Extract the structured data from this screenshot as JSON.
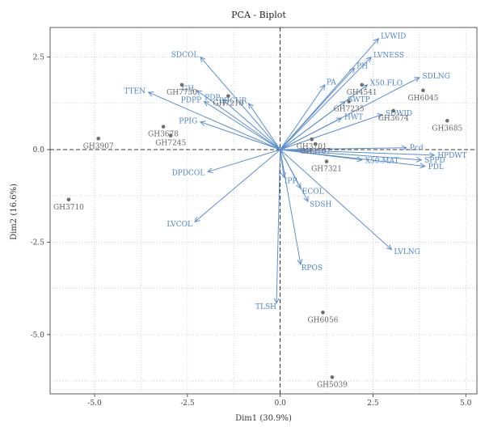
{
  "chart_data": {
    "type": "scatter",
    "title": "PCA - Biplot",
    "xlabel": "Dim1 (30.9%)",
    "ylabel": "Dim2 (16.6%)",
    "xlim": [
      -6.2,
      5.3
    ],
    "ylim": [
      -6.6,
      3.3
    ],
    "xticks": [
      -5.0,
      -2.5,
      0.0,
      2.5,
      5.0
    ],
    "yticks": [
      2.5,
      0.0,
      -2.5,
      -5.0
    ],
    "xtick_labels": [
      "-5.0",
      "-2.5",
      "0.0",
      "2.5",
      "5.0"
    ],
    "ytick_labels": [
      "2.5",
      "0.0",
      "-2.5",
      "-5.0"
    ],
    "grid": true,
    "colors": {
      "individuals": "#6e6e6e",
      "variables": "#5b8fd0",
      "reference_lines": "#000000"
    },
    "individuals": [
      {
        "name": "GH7730",
        "x": -2.65,
        "y": 1.75
      },
      {
        "name": "GH7218",
        "x": -1.4,
        "y": 1.45
      },
      {
        "name": "GH3678",
        "x": -3.15,
        "y": 0.62
      },
      {
        "name": "GH7245",
        "x": -2.95,
        "y": 0.38
      },
      {
        "name": "GH3907",
        "x": -4.9,
        "y": 0.3
      },
      {
        "name": "GH3710",
        "x": -5.7,
        "y": -1.35
      },
      {
        "name": "GH4541",
        "x": 2.2,
        "y": 1.75
      },
      {
        "name": "GH6045",
        "x": 3.85,
        "y": 1.6
      },
      {
        "name": "GH3685",
        "x": 4.5,
        "y": 0.78
      },
      {
        "name": "GH3674",
        "x": 3.05,
        "y": 1.05
      },
      {
        "name": "GH7235",
        "x": 1.85,
        "y": 1.3
      },
      {
        "name": "GH3701",
        "x": 0.85,
        "y": 0.28
      },
      {
        "name": "GH3707",
        "x": 0.95,
        "y": 0.15
      },
      {
        "name": "GH7321",
        "x": 1.25,
        "y": -0.32
      },
      {
        "name": "GH6056",
        "x": 1.15,
        "y": -4.4
      },
      {
        "name": "GH5039",
        "x": 1.4,
        "y": -6.15
      }
    ],
    "variables": [
      {
        "name": "LVWID",
        "x": 2.65,
        "y": 3.0
      },
      {
        "name": "LVNESS",
        "x": 2.45,
        "y": 2.5
      },
      {
        "name": "PH",
        "x": 2.0,
        "y": 2.2
      },
      {
        "name": "PA",
        "x": 1.2,
        "y": 1.75
      },
      {
        "name": "X50.FLO",
        "x": 2.35,
        "y": 1.75
      },
      {
        "name": "SDLNG",
        "x": 3.75,
        "y": 1.95
      },
      {
        "name": "SWTP",
        "x": 1.75,
        "y": 1.3
      },
      {
        "name": "HWT",
        "x": 1.65,
        "y": 0.85
      },
      {
        "name": "SDWID",
        "x": 2.75,
        "y": 0.95
      },
      {
        "name": "Pcd",
        "x": 3.4,
        "y": 0.05
      },
      {
        "name": "HPDWT",
        "x": 4.15,
        "y": -0.15
      },
      {
        "name": "SPPD",
        "x": 3.8,
        "y": -0.28
      },
      {
        "name": "PDL",
        "x": 3.9,
        "y": -0.45
      },
      {
        "name": "X50.MAT",
        "x": 2.2,
        "y": -0.28
      },
      {
        "name": "LVLNG",
        "x": 3.0,
        "y": -2.7
      },
      {
        "name": "SDSH",
        "x": 0.75,
        "y": -1.4
      },
      {
        "name": "ECOL",
        "x": 0.55,
        "y": -1.05
      },
      {
        "name": "IPP",
        "x": 0.1,
        "y": -0.75
      },
      {
        "name": "RPOS",
        "x": 0.55,
        "y": -3.1
      },
      {
        "name": "TLSH",
        "x": -0.1,
        "y": -4.15
      },
      {
        "name": "DPDCOL",
        "x": -1.95,
        "y": -0.6
      },
      {
        "name": "LVCOL",
        "x": -2.3,
        "y": -1.95
      },
      {
        "name": "PPIG",
        "x": -2.15,
        "y": 0.75
      },
      {
        "name": "TTEN",
        "x": -3.55,
        "y": 1.55
      },
      {
        "name": "PDPP",
        "x": -2.05,
        "y": 1.3
      },
      {
        "name": "GH",
        "x": -2.25,
        "y": 1.6
      },
      {
        "name": "SDCOL",
        "x": -2.15,
        "y": 2.5
      },
      {
        "name": "PDCUR",
        "x": -0.85,
        "y": 1.25
      },
      {
        "name": "PDP",
        "x": -1.55,
        "y": 1.35
      }
    ]
  }
}
